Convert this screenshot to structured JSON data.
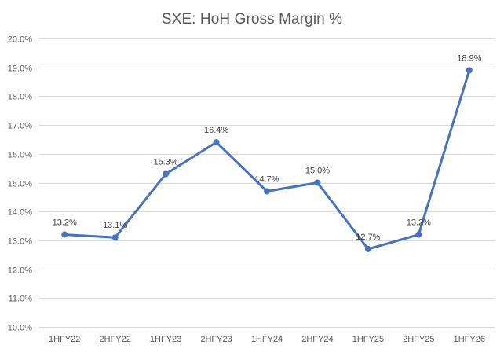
{
  "chart_data": {
    "type": "line",
    "title": "SXE: HoH Gross Margin %",
    "xlabel": "",
    "ylabel": "",
    "categories": [
      "1HFY22",
      "2HFY22",
      "1HFY23",
      "2HFY23",
      "1HFY24",
      "2HFY24",
      "1HFY25",
      "2HFY25",
      "1HFY26"
    ],
    "values": [
      13.2,
      13.1,
      15.3,
      16.4,
      14.7,
      15.0,
      12.7,
      13.2,
      18.9
    ],
    "data_labels": [
      "13.2%",
      "13.1%",
      "15.3%",
      "16.4%",
      "14.7%",
      "15.0%",
      "12.7%",
      "13.2%",
      "18.9%"
    ],
    "ylim": [
      10,
      20
    ],
    "y_ticks": [
      10,
      11,
      12,
      13,
      14,
      15,
      16,
      17,
      18,
      19,
      20
    ],
    "y_tick_labels": [
      "10.0%",
      "11.0%",
      "12.0%",
      "13.0%",
      "14.0%",
      "15.0%",
      "16.0%",
      "17.0%",
      "18.0%",
      "19.0%",
      "20.0%"
    ],
    "grid": true,
    "legend": "none",
    "colors": {
      "line": "#4472C4",
      "grid": "#D9D9D9",
      "text": "#595959"
    }
  }
}
